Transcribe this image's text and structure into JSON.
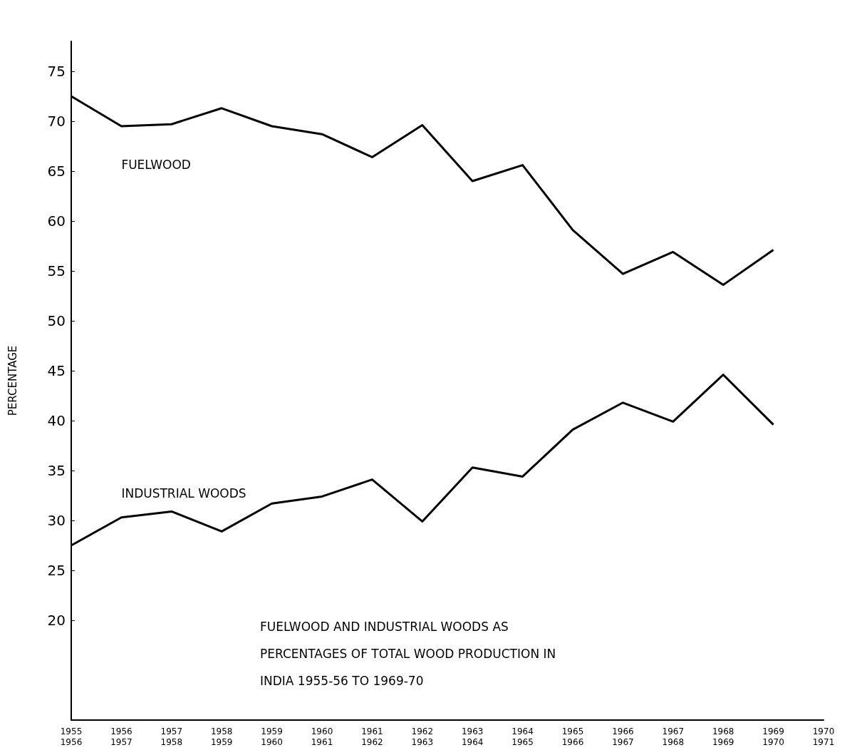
{
  "chart_data": {
    "type": "line",
    "title": "FUELWOOD AND INDUSTRIAL WOODS AS PERCENTAGES OF TOTAL WOOD PRODUCTION IN INDIA 1955-56 TO 1969-70",
    "ylabel": "PERCENTAGE",
    "categories": [
      "1955\n1956",
      "1956\n1957",
      "1957\n1958",
      "1958\n1959",
      "1959\n1960",
      "1960\n1961",
      "1961\n1962",
      "1962\n1963",
      "1963\n1964",
      "1964\n1965",
      "1965\n1966",
      "1966\n1967",
      "1967\n1968",
      "1968\n1969",
      "1969\n1970",
      "1970\n1971"
    ],
    "series": [
      {
        "name": "FUELWOOD",
        "color": "#000000",
        "values": [
          72.5,
          69.5,
          69.7,
          71.3,
          69.5,
          68.7,
          66.4,
          69.6,
          64,
          65.6,
          59.1,
          54.7,
          56.9,
          53.6,
          57.1,
          null
        ]
      },
      {
        "name": "INDUSTRIAL WOODS",
        "color": "#000000",
        "values": [
          27.5,
          30.3,
          30.9,
          28.9,
          31.7,
          32.4,
          34.1,
          29.9,
          35.3,
          34.4,
          39.1,
          41.8,
          39.9,
          44.6,
          39.6,
          null
        ]
      }
    ],
    "ylim": [
      10,
      78
    ],
    "yticks": [
      20,
      25,
      30,
      35,
      40,
      45,
      50,
      55,
      60,
      65,
      70,
      75
    ],
    "grid": false,
    "legend": false,
    "marker": "none",
    "line_style": "solid"
  }
}
